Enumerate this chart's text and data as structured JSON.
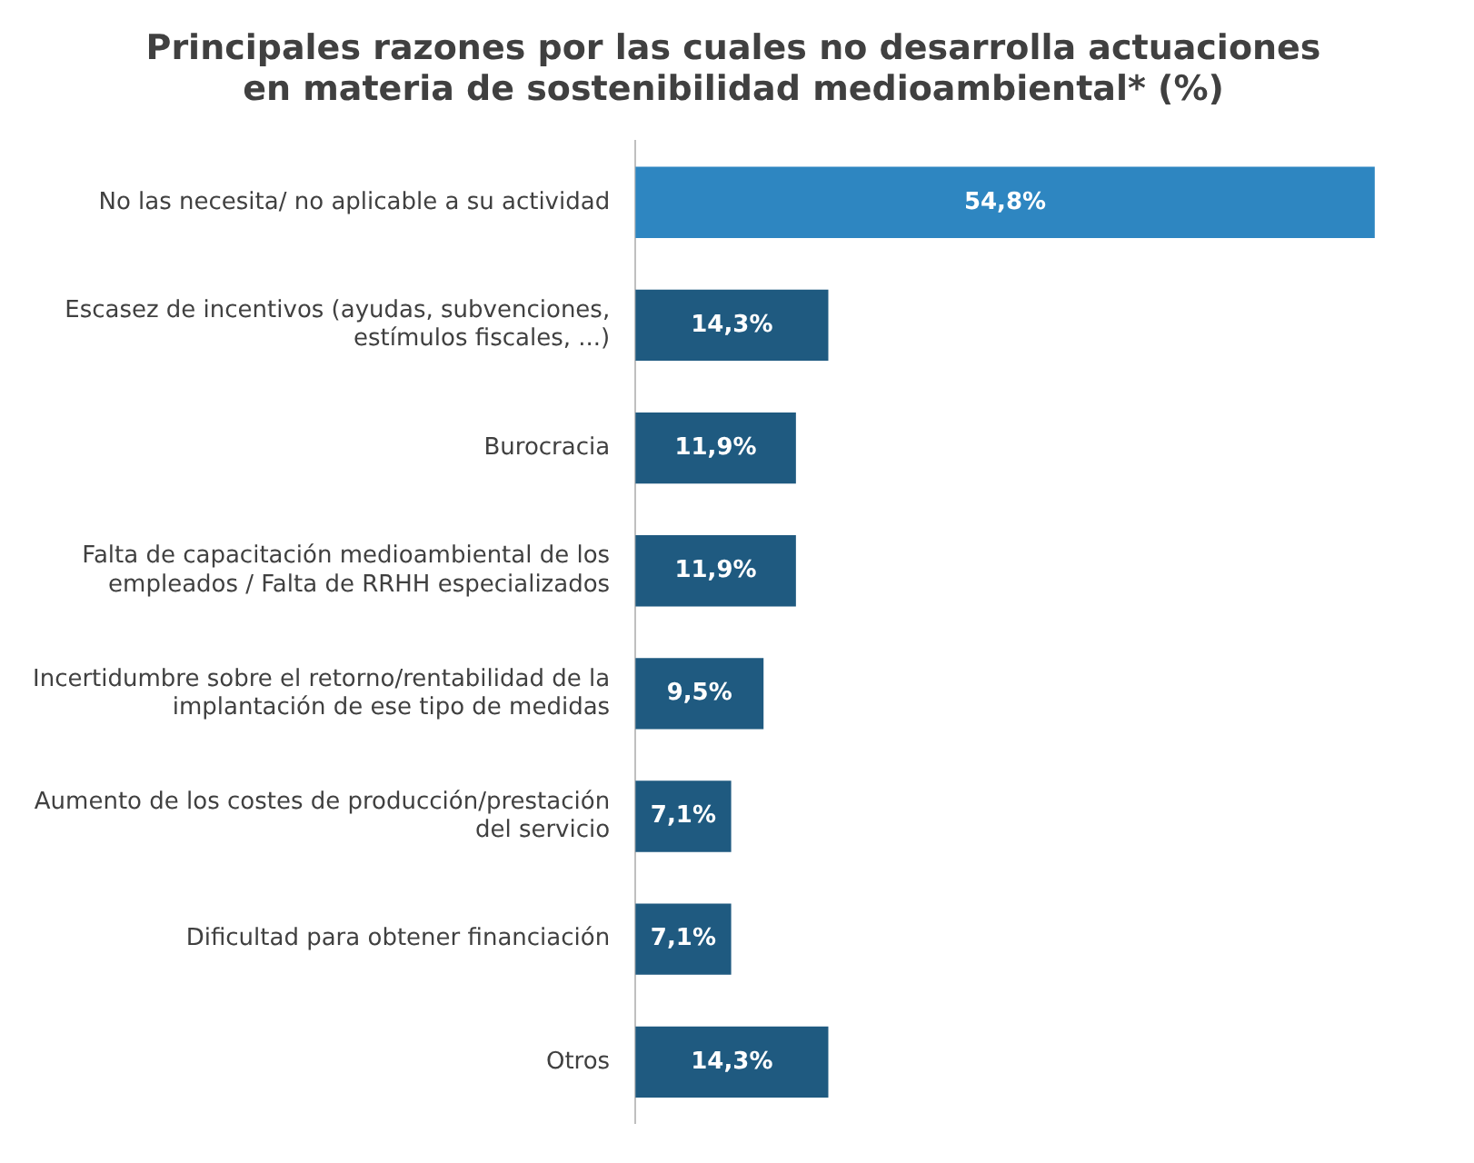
{
  "chart_data": {
    "type": "bar",
    "orientation": "horizontal",
    "title": "Principales razones por las cuales no desarrolla actuaciones\nen materia de sostenibilidad medioambiental* (%)",
    "categories": [
      "No las necesita/ no aplicable a su actividad",
      "Escasez de incentivos (ayudas, subvenciones,\nestímulos fiscales, ...)",
      "Burocracia",
      "Falta de capacitación medioambiental de los\nempleados / Falta de RRHH especializados",
      "Incertidumbre sobre el retorno/rentabilidad de la\nimplantación de ese tipo de medidas",
      "Aumento de los costes de producción/prestación\ndel servicio",
      "Dificultad para obtener financiación",
      "Otros"
    ],
    "values": [
      54.8,
      14.3,
      11.9,
      11.9,
      9.5,
      7.1,
      7.1,
      14.3
    ],
    "value_labels": [
      "54,8%",
      "14,3%",
      "11,9%",
      "11,9%",
      "9,5%",
      "7,1%",
      "7,1%",
      "14,3%"
    ],
    "colors": [
      "#2e86c1",
      "#1f5a80",
      "#1f5a80",
      "#1f5a80",
      "#1f5a80",
      "#1f5a80",
      "#1f5a80",
      "#1f5a80"
    ],
    "legend": false,
    "tick_labels": "y"
  }
}
